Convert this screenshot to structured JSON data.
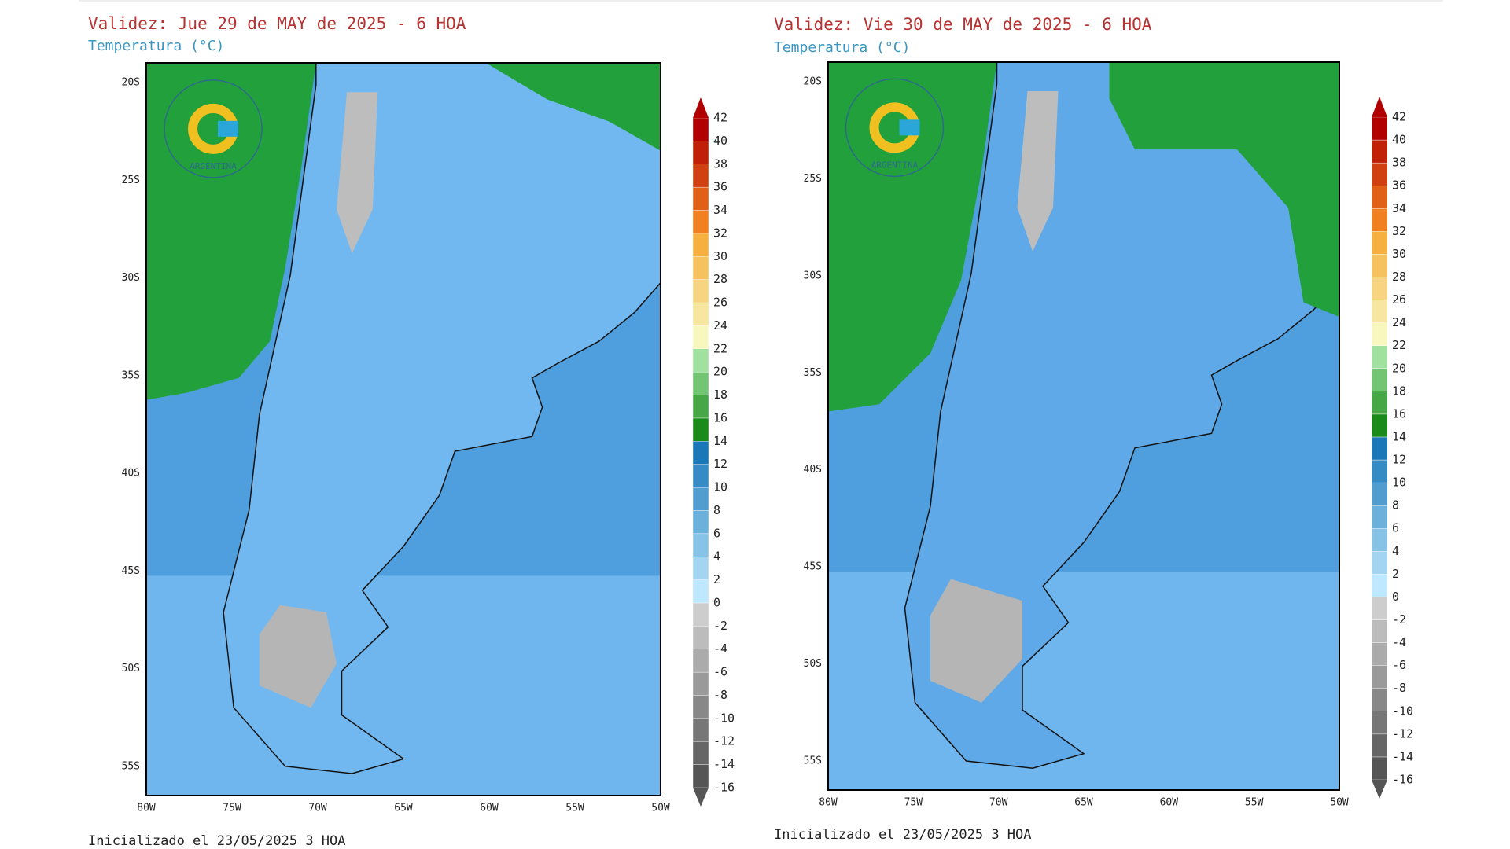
{
  "panels": [
    {
      "title": "Validez: Jue 29 de MAY de 2025 - 6 HOA",
      "subtitle": "Temperatura (°C)",
      "logo_text": "ARGENTINA",
      "lat_labels": [
        "20S",
        "25S",
        "30S",
        "35S",
        "40S",
        "45S",
        "50S",
        "55S"
      ],
      "lon_labels": [
        "80W",
        "75W",
        "70W",
        "65W",
        "60W",
        "55W",
        "50W"
      ],
      "colorbar": [
        -16,
        -14,
        -12,
        -10,
        -8,
        -6,
        -4,
        -2,
        0,
        2,
        4,
        6,
        8,
        10,
        12,
        14,
        16,
        18,
        20,
        22,
        24,
        26,
        28,
        30,
        32,
        34,
        36,
        38,
        40,
        42
      ],
      "footer": "Inicializado el 23/05/2025 3 HOA"
    },
    {
      "title": "Validez: Vie 30 de MAY de 2025 - 6 HOA",
      "subtitle": "Temperatura (°C)",
      "logo_text": "ARGENTINA",
      "lat_labels": [
        "20S",
        "25S",
        "30S",
        "35S",
        "40S",
        "45S",
        "50S",
        "55S"
      ],
      "lon_labels": [
        "80W",
        "75W",
        "70W",
        "65W",
        "60W",
        "55W",
        "50W"
      ],
      "colorbar": [
        -16,
        -14,
        -12,
        -10,
        -8,
        -6,
        -4,
        -2,
        0,
        2,
        4,
        6,
        8,
        10,
        12,
        14,
        16,
        18,
        20,
        22,
        24,
        26,
        28,
        30,
        32,
        34,
        36,
        38,
        40,
        42
      ],
      "footer": "Inicializado el 23/05/2025 3 HOA"
    }
  ]
}
